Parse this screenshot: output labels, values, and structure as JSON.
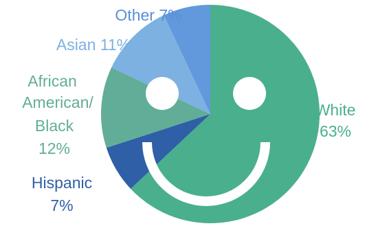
{
  "chart_data": {
    "type": "pie",
    "title": "",
    "start_angle_deg": 0,
    "direction": "clockwise",
    "slices": [
      {
        "label": "White",
        "value": 63,
        "display": "63%",
        "color": "#4aaf8d"
      },
      {
        "label": "Hispanic",
        "value": 7,
        "display": "7%",
        "color": "#2f5fa6"
      },
      {
        "label": "African American/ Black",
        "value": 12,
        "display": "12%",
        "color": "#62ad98"
      },
      {
        "label": "Asian",
        "value": 11,
        "display": "11%",
        "color": "#7cb1e1"
      },
      {
        "label": "Other",
        "value": 7,
        "display": "7%",
        "color": "#6199dc"
      }
    ],
    "labels_text": {
      "other": "Other 7%",
      "asian": "Asian 11%",
      "african_american_1": "African",
      "african_american_2": "American/",
      "african_american_3": "Black",
      "african_american_4": "12%",
      "hispanic_1": "Hispanic",
      "hispanic_2": "7%",
      "white_1": "White",
      "white_2": "63%"
    },
    "label_colors": {
      "other": "#5b8fd6",
      "asian": "#7cb1e1",
      "african_american": "#62ad98",
      "hispanic": "#2f5fa6",
      "white": "#4aaf8d"
    },
    "face_overlay": {
      "eyes": 2,
      "smile": true,
      "color": "#ffffff"
    },
    "legend": "none"
  }
}
